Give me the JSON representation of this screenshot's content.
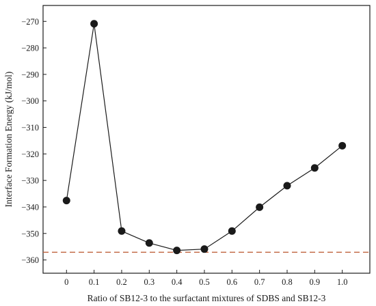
{
  "chart_data": {
    "type": "line",
    "title": "",
    "xlabel": "Ratio of SB12-3 to the surfactant mixtures of SDBS and SB12-3",
    "ylabel": "Interface Formation Energy (kJ/mol)",
    "x": [
      0,
      0.1,
      0.2,
      0.3,
      0.4,
      0.5,
      0.6,
      0.7,
      0.8,
      0.9,
      1.0
    ],
    "x_tick_labels": [
      "0",
      "0.1",
      "0.2",
      "0.3",
      "0.4",
      "0.5",
      "0.6",
      "0.7",
      "0.8",
      "0.9",
      "1.0"
    ],
    "xlim": [
      -0.085,
      1.1
    ],
    "y_ticks": [
      -270,
      -280,
      -290,
      -300,
      -310,
      -320,
      -330,
      -340,
      -350,
      -360
    ],
    "y_tick_labels": [
      "−270",
      "−280",
      "−290",
      "−300",
      "−310",
      "−320",
      "−330",
      "−340",
      "−350",
      "−360"
    ],
    "ylim": [
      -365,
      -264
    ],
    "series": [
      {
        "values": [
          -337.6,
          -270.9,
          -349.1,
          -353.6,
          -356.4,
          -355.9,
          -349.1,
          -340.1,
          -332.0,
          -325.3,
          -316.9
        ],
        "color": "#1a1a1a"
      }
    ],
    "reference_line": {
      "y": -357.1,
      "color": "#c0633f",
      "style": "dashed"
    },
    "grid": false,
    "legend": "none"
  }
}
